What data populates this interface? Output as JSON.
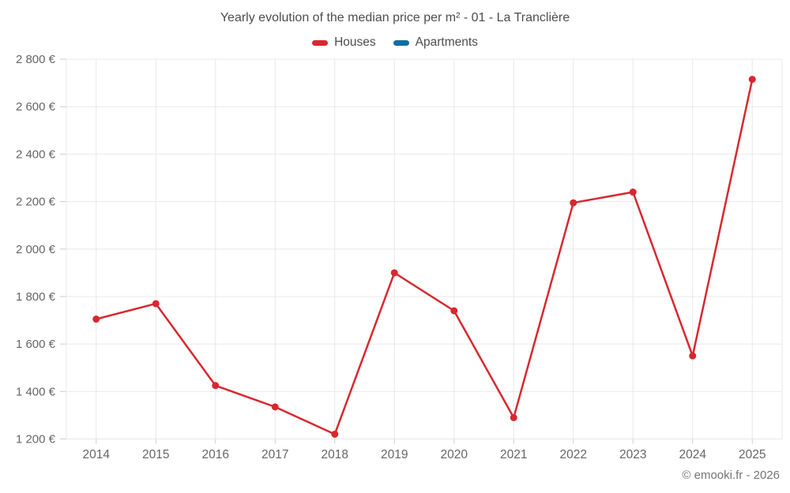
{
  "title": "Yearly evolution of the median price per m² - 01 - La Tranclière",
  "footer": "© emooki.fr - 2026",
  "legend": [
    {
      "label": "Houses",
      "color": "#d7282f"
    },
    {
      "label": "Apartments",
      "color": "#0f6fa0"
    }
  ],
  "colors": {
    "houses": "#d7282f",
    "apartments": "#0f6fa0",
    "grid": "#e8e8e8",
    "tick": "#cccccc",
    "axis_text": "#666666",
    "title_text": "#4d4d4d",
    "footer_text": "#757575"
  },
  "chart_data": {
    "type": "line",
    "title": "Yearly evolution of the median price per m² - 01 - La Tranclière",
    "categories": [
      "2014",
      "2015",
      "2016",
      "2017",
      "2018",
      "2019",
      "2020",
      "2021",
      "2022",
      "2023",
      "2024",
      "2025"
    ],
    "series": [
      {
        "name": "Houses",
        "color": "#d7282f",
        "values": [
          1705,
          1770,
          1425,
          1335,
          1220,
          1900,
          1740,
          1290,
          2195,
          2240,
          1550,
          2715
        ]
      },
      {
        "name": "Apartments",
        "color": "#0f6fa0",
        "values": []
      }
    ],
    "xlabel": "",
    "ylabel": "",
    "ytick_format": "{value} €",
    "ylim": [
      1200,
      2800
    ],
    "ytick_step": 200,
    "grid": true,
    "legend_position": "top",
    "marker": "circle"
  }
}
